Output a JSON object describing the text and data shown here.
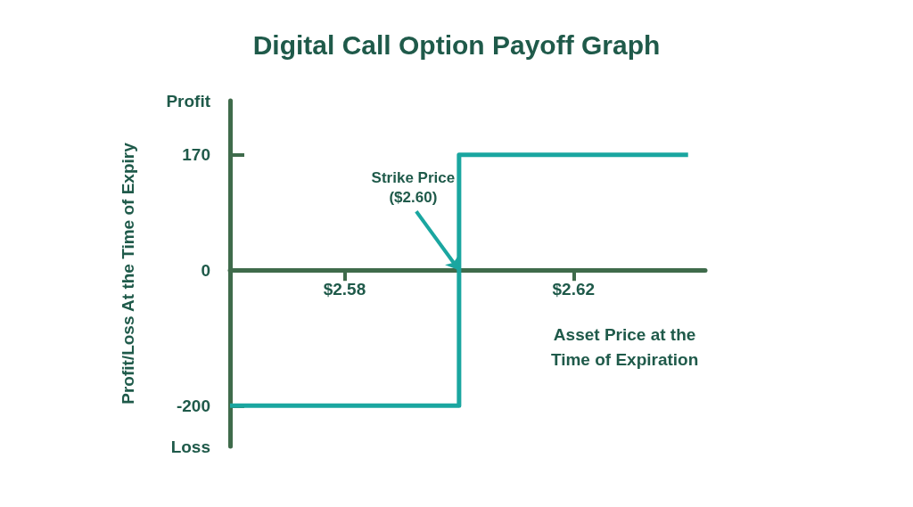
{
  "chart_data": {
    "type": "step",
    "title": "Digital Call Option Payoff Graph",
    "xlabel": "Asset Price at the\nTime of Expiration",
    "ylabel": "Profit/Loss At the Time of Expiry",
    "x": [
      2.56,
      2.6,
      2.64
    ],
    "values": [
      -200,
      170,
      170
    ],
    "color": "#1aa6a0",
    "xlim": [
      2.56,
      2.643
    ],
    "xticks": [
      {
        "value": 2.58,
        "label": "$2.58"
      },
      {
        "value": 2.62,
        "label": "$2.62"
      }
    ],
    "ylim": [
      -260,
      250
    ],
    "yticks": [
      {
        "value": 250,
        "label": "Profit"
      },
      170,
      0,
      -200,
      {
        "value": -260,
        "label": "Loss"
      }
    ],
    "annotations": [
      {
        "text": "Strike Price\n($2.60)",
        "x": 2.6,
        "y": 0
      }
    ]
  }
}
